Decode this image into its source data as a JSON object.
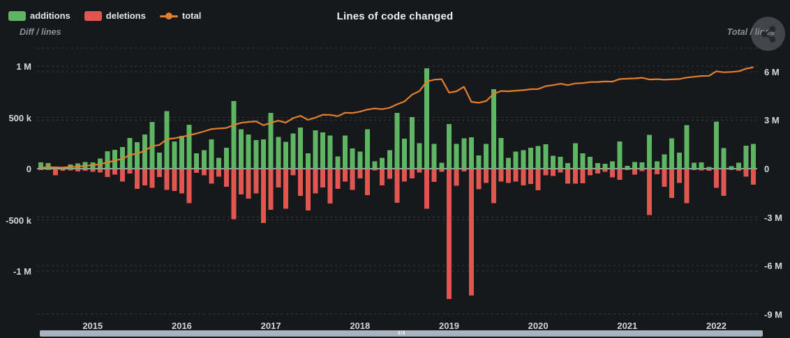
{
  "header": {
    "title": "Lines of code changed",
    "legend": [
      {
        "label": "additions",
        "color": "#5fb662",
        "type": "bar"
      },
      {
        "label": "deletions",
        "color": "#e25650",
        "type": "bar"
      },
      {
        "label": "total",
        "color": "#e2802e",
        "type": "line"
      }
    ]
  },
  "axes": {
    "left": {
      "name": "Diff / lines",
      "ticks": [
        {
          "label": "1 M",
          "value_k": 1000
        },
        {
          "label": "500 k",
          "value_k": 500
        },
        {
          "label": "0",
          "value_k": 0
        },
        {
          "label": "-500 k",
          "value_k": -500
        },
        {
          "label": "-1 M",
          "value_k": -1000
        }
      ]
    },
    "right": {
      "name": "Total / lines",
      "ticks": [
        {
          "label": "6 M",
          "value_m": 6
        },
        {
          "label": "3 M",
          "value_m": 3
        },
        {
          "label": "0",
          "value_m": 0
        },
        {
          "label": "-3 M",
          "value_m": -3
        },
        {
          "label": "-6 M",
          "value_m": -6
        },
        {
          "label": "-9 M",
          "value_m": -9
        }
      ]
    },
    "x": {
      "tick_years": [
        "2015",
        "2016",
        "2017",
        "2018",
        "2019",
        "2020",
        "2021",
        "2022"
      ]
    }
  },
  "chart_data": {
    "type": "bar",
    "subtype": "monthly diff bars with cumulative total line (dual axis)",
    "title": "Lines of code changed",
    "legend_position": "top-left",
    "grid": "horizontal dashed",
    "background": "#17181c",
    "ylim_left_thousand_lines": [
      -1450,
      1180
    ],
    "ylim_right_million_lines": [
      -9.5,
      7.5
    ],
    "months": [
      "2014-06",
      "2014-07",
      "2014-08",
      "2014-09",
      "2014-10",
      "2014-11",
      "2014-12",
      "2015-01",
      "2015-02",
      "2015-03",
      "2015-04",
      "2015-05",
      "2015-06",
      "2015-07",
      "2015-08",
      "2015-09",
      "2015-10",
      "2015-11",
      "2015-12",
      "2016-01",
      "2016-02",
      "2016-03",
      "2016-04",
      "2016-05",
      "2016-06",
      "2016-07",
      "2016-08",
      "2016-09",
      "2016-10",
      "2016-11",
      "2016-12",
      "2017-01",
      "2017-02",
      "2017-03",
      "2017-04",
      "2017-05",
      "2017-06",
      "2017-07",
      "2017-08",
      "2017-09",
      "2017-10",
      "2017-11",
      "2017-12",
      "2018-01",
      "2018-02",
      "2018-03",
      "2018-04",
      "2018-05",
      "2018-06",
      "2018-07",
      "2018-08",
      "2018-09",
      "2018-10",
      "2018-11",
      "2018-12",
      "2019-01",
      "2019-02",
      "2019-03",
      "2019-04",
      "2019-05",
      "2019-06",
      "2019-07",
      "2019-08",
      "2019-09",
      "2019-10",
      "2019-11",
      "2019-12",
      "2020-01",
      "2020-02",
      "2020-03",
      "2020-04",
      "2020-05",
      "2020-06",
      "2020-07",
      "2020-08",
      "2020-09",
      "2020-10",
      "2020-11",
      "2020-12",
      "2021-01",
      "2021-02",
      "2021-03",
      "2021-04",
      "2021-05",
      "2021-06",
      "2021-07",
      "2021-08",
      "2021-09",
      "2021-10",
      "2021-11",
      "2021-12",
      "2022-01",
      "2022-02",
      "2022-03",
      "2022-04",
      "2022-05",
      "2022-06"
    ],
    "series": [
      {
        "name": "additions",
        "axis": "left",
        "unit": "thousand lines",
        "color": "#5fb662",
        "values": [
          60,
          55,
          20,
          15,
          40,
          50,
          66,
          62,
          100,
          170,
          185,
          210,
          300,
          260,
          335,
          455,
          158,
          560,
          265,
          320,
          430,
          148,
          180,
          285,
          107,
          205,
          660,
          385,
          335,
          278,
          285,
          545,
          310,
          262,
          342,
          400,
          150,
          373,
          355,
          322,
          118,
          322,
          197,
          167,
          383,
          73,
          107,
          180,
          545,
          293,
          505,
          248,
          980,
          240,
          57,
          437,
          240,
          295,
          306,
          130,
          240,
          775,
          300,
          107,
          167,
          180,
          203,
          220,
          237,
          125,
          115,
          53,
          250,
          150,
          115,
          55,
          48,
          73,
          265,
          27,
          66,
          60,
          330,
          73,
          140,
          295,
          155,
          425,
          57,
          60,
          18,
          460,
          200,
          25,
          57,
          225,
          240
        ]
      },
      {
        "name": "deletions",
        "axis": "left",
        "unit": "thousand lines",
        "color": "#e25650",
        "values": [
          -8,
          -5,
          -57,
          -15,
          -10,
          -20,
          -15,
          -25,
          -30,
          -75,
          -52,
          -120,
          -40,
          -190,
          -155,
          -180,
          -75,
          -200,
          -210,
          -235,
          -330,
          -35,
          -57,
          -140,
          -70,
          -170,
          -485,
          -245,
          -285,
          -235,
          -525,
          -395,
          -178,
          -385,
          -57,
          -260,
          -400,
          -235,
          -178,
          -335,
          -190,
          -120,
          -200,
          -87,
          -252,
          -10,
          -155,
          -93,
          -325,
          -120,
          -87,
          -30,
          -385,
          -123,
          -25,
          -1265,
          -160,
          -20,
          -1230,
          -193,
          -133,
          -330,
          -120,
          -133,
          -120,
          -155,
          -143,
          -205,
          -57,
          -63,
          -30,
          -140,
          -140,
          -135,
          -57,
          -40,
          -23,
          -78,
          -103,
          -7,
          -50,
          -18,
          -445,
          -48,
          -170,
          -280,
          -133,
          -330,
          -7,
          -10,
          -12,
          -180,
          -260,
          -5,
          -15,
          -70,
          -150
        ]
      },
      {
        "name": "total",
        "axis": "right",
        "unit": "million lines",
        "color": "#e2802e",
        "values": [
          0.05,
          0.1,
          0.07,
          0.07,
          0.1,
          0.13,
          0.18,
          0.21,
          0.28,
          0.38,
          0.51,
          0.6,
          0.86,
          0.93,
          1.11,
          1.39,
          1.47,
          1.83,
          1.88,
          1.97,
          2.07,
          2.18,
          2.31,
          2.45,
          2.49,
          2.52,
          2.7,
          2.84,
          2.89,
          2.93,
          2.69,
          2.84,
          2.97,
          2.85,
          3.13,
          3.27,
          3.02,
          3.16,
          3.34,
          3.33,
          3.25,
          3.46,
          3.45,
          3.53,
          3.66,
          3.73,
          3.68,
          3.77,
          3.99,
          4.16,
          4.58,
          4.8,
          5.39,
          5.51,
          5.54,
          4.71,
          4.79,
          5.07,
          4.14,
          4.08,
          4.19,
          4.63,
          4.81,
          4.79,
          4.83,
          4.86,
          4.92,
          4.93,
          5.11,
          5.17,
          5.26,
          5.17,
          5.28,
          5.3,
          5.36,
          5.37,
          5.4,
          5.39,
          5.55,
          5.57,
          5.59,
          5.63,
          5.52,
          5.54,
          5.51,
          5.53,
          5.55,
          5.64,
          5.69,
          5.74,
          5.75,
          6.03,
          5.97,
          5.99,
          6.03,
          6.19,
          6.28
        ]
      }
    ]
  },
  "watermark": {
    "icon": "share-icon"
  },
  "colors": {
    "background": "#17181c",
    "grid_dashed": "#34373c",
    "zero_line": "#ccd1d7",
    "scrollbar": "#a9b2bf",
    "text_primary": "#eceff1",
    "text_secondary": "#8d9096"
  }
}
